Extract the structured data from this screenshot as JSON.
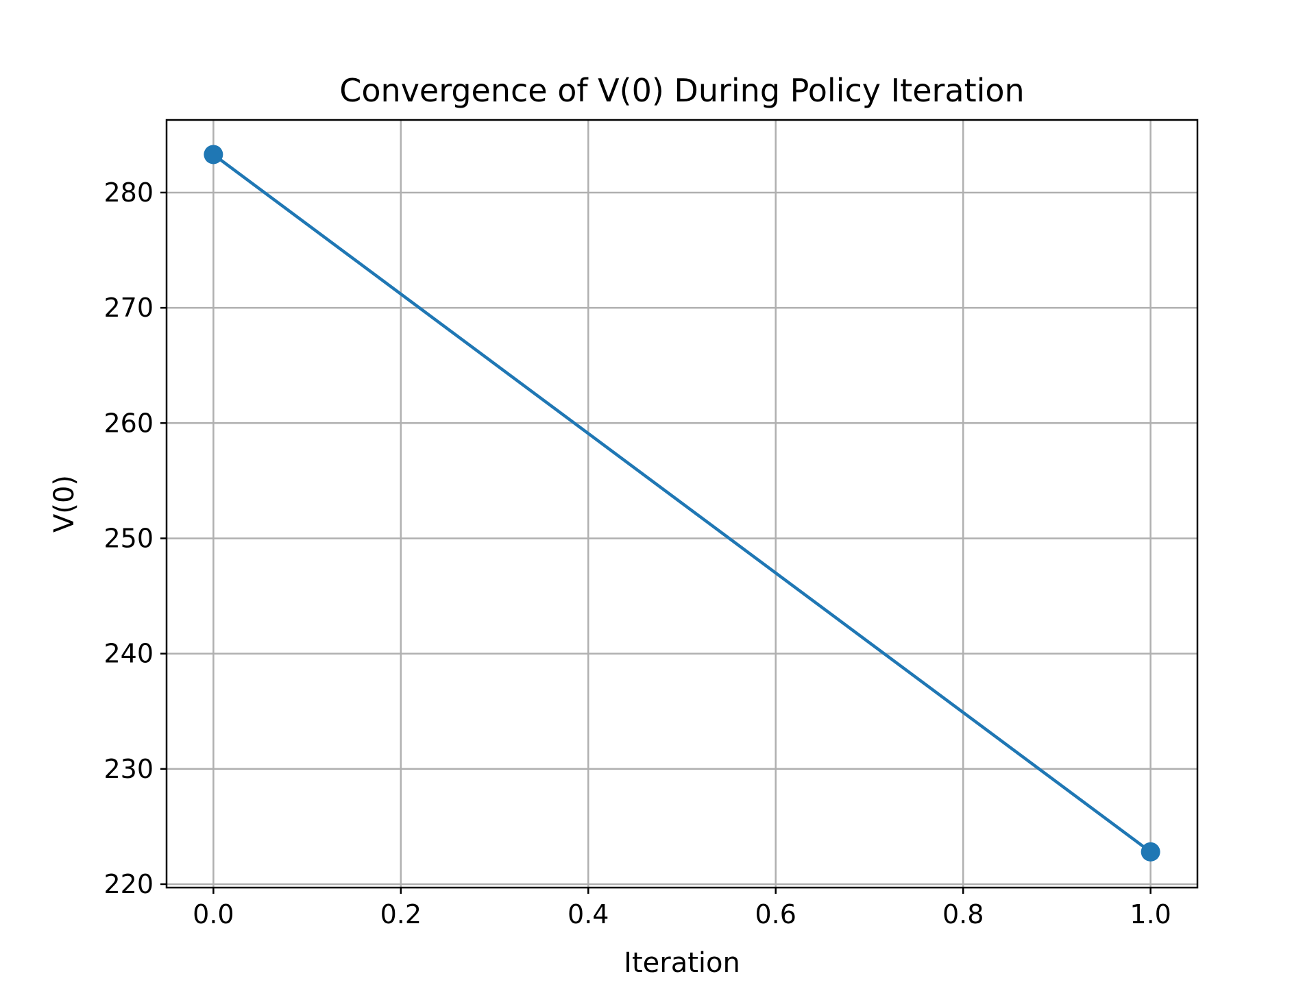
{
  "chart_data": {
    "type": "line",
    "title": "Convergence of V(0) During Policy Iteration",
    "xlabel": "Iteration",
    "ylabel": "V(0)",
    "xlim": [
      -0.05,
      1.05
    ],
    "ylim": [
      219.7,
      286.3
    ],
    "xticks": [
      0.0,
      0.2,
      0.4,
      0.6,
      0.8,
      1.0
    ],
    "xtick_labels": [
      "0.0",
      "0.2",
      "0.4",
      "0.6",
      "0.8",
      "1.0"
    ],
    "yticks": [
      220,
      230,
      240,
      250,
      260,
      270,
      280
    ],
    "ytick_labels": [
      "220",
      "230",
      "240",
      "250",
      "260",
      "270",
      "280"
    ],
    "grid": true,
    "legend": "none",
    "series": [
      {
        "x": [
          0,
          1
        ],
        "y": [
          283.3,
          222.8
        ],
        "color": "#1f77b4",
        "marker": "circle"
      }
    ]
  }
}
